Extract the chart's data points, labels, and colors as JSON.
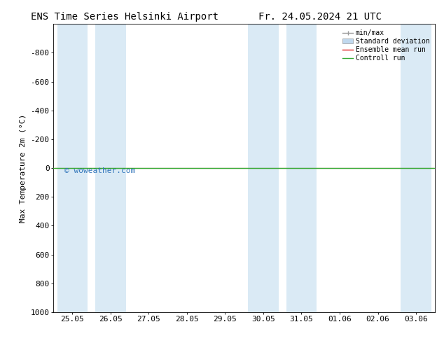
{
  "title_left": "ENS Time Series Helsinki Airport",
  "title_right": "Fr. 24.05.2024 21 UTC",
  "ylabel": "Max Temperature 2m (°C)",
  "watermark": "© woweather.com",
  "ylim_bottom": 1000,
  "ylim_top": -1000,
  "yticks": [
    -800,
    -600,
    -400,
    -200,
    0,
    200,
    400,
    600,
    800,
    1000
  ],
  "xtick_labels": [
    "25.05",
    "26.05",
    "27.05",
    "28.05",
    "29.05",
    "30.05",
    "31.05",
    "01.06",
    "02.06",
    "03.06"
  ],
  "xtick_values": [
    0,
    1,
    2,
    3,
    4,
    5,
    6,
    7,
    8,
    9
  ],
  "shaded_columns": [
    0,
    1,
    5,
    6,
    9
  ],
  "shaded_color": "#daeaf5",
  "bg_color": "#ffffff",
  "plot_bg_color": "#ffffff",
  "line_red_color": "#dd2222",
  "line_green_color": "#33aa33",
  "title_fontsize": 10,
  "axis_fontsize": 8,
  "tick_fontsize": 8,
  "watermark_color": "#3377bb",
  "border_color": "#000000",
  "legend_minmax_color": "#999999",
  "legend_std_color": "#c0d8ee"
}
